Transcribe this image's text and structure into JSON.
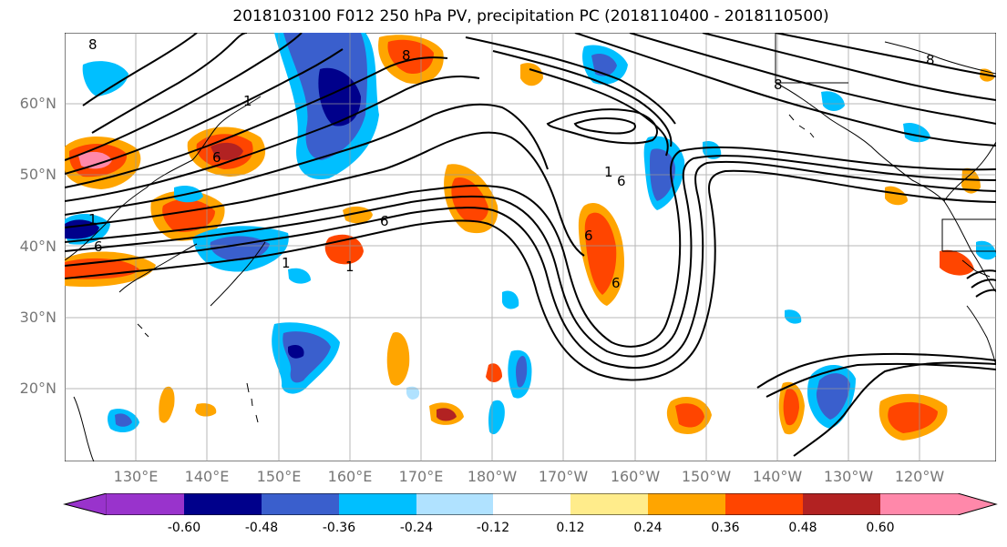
{
  "title": "2018103100 F012 250 hPa PV, precipitation PC (2018110400 - 2018110500)",
  "lat_labels": [
    "60°N",
    "50°N",
    "40°N",
    "30°N",
    "20°N"
  ],
  "lon_labels": [
    "130°E",
    "140°E",
    "150°E",
    "160°E",
    "170°E",
    "180°W",
    "170°W",
    "160°W",
    "150°W",
    "140°W",
    "130°W",
    "120°W"
  ],
  "colorbar": {
    "colors": [
      "#9933cc",
      "#00008b",
      "#3a5fcd",
      "#00bfff",
      "#b0e2ff",
      "#ffffff",
      "#ffec8b",
      "#ffa500",
      "#ff4500",
      "#b22222",
      "#ff88aa"
    ],
    "tick_labels": [
      "-0.60",
      "-0.48",
      "-0.36",
      "-0.24",
      "-0.12",
      "0.12",
      "0.24",
      "0.36",
      "0.48",
      "0.60"
    ]
  },
  "contour_labels": [
    "8",
    "1",
    "6",
    "8",
    "1",
    "1",
    "6",
    "1",
    "6",
    "6",
    "6",
    "6",
    "1",
    "8",
    "8"
  ]
}
